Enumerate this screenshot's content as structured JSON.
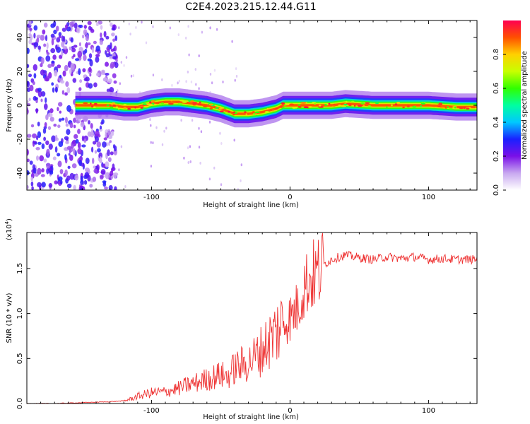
{
  "figure": {
    "title": "C2E4.2023.215.12.44.G11"
  },
  "chart_data": [
    {
      "type": "heatmap",
      "title": "C2E4.2023.215.12.44.G11",
      "xlabel": "Height of straight line (km)",
      "ylabel": "Frequency (Hz)",
      "xlim": [
        -190,
        135
      ],
      "ylim": [
        -50,
        50
      ],
      "x_ticks": [
        -100,
        0,
        100
      ],
      "y_ticks": [
        -40,
        -20,
        0,
        20,
        40
      ],
      "grid": false,
      "ridge": {
        "x": [
          -155,
          -140,
          -130,
          -120,
          -110,
          -100,
          -90,
          -80,
          -70,
          -60,
          -50,
          -40,
          -30,
          -20,
          -10,
          -5,
          0,
          10,
          20,
          30,
          40,
          60,
          80,
          100,
          120,
          135
        ],
        "frequency": [
          0,
          0,
          0,
          -1,
          -1,
          1,
          2,
          2,
          1,
          0,
          -2,
          -5,
          -5,
          -4,
          -2,
          0,
          0,
          0,
          0,
          0,
          1,
          0,
          0,
          0,
          -1,
          -1
        ]
      },
      "noise_region_x": [
        -190,
        -125
      ],
      "colorbar": {
        "label": "Normalized spectral amplitude",
        "range": [
          0,
          1
        ],
        "ticks": [
          "0.0",
          "0.2",
          "0.4",
          "0.6",
          "0.8"
        ],
        "tick_values": [
          0.0,
          0.2,
          0.4,
          0.6,
          0.8
        ],
        "colormap": [
          "#ffffff",
          "#c8a8f0",
          "#7a10e8",
          "#1a20ff",
          "#00c8ff",
          "#00ffa0",
          "#30ff00",
          "#c8ff00",
          "#ffd000",
          "#ff5000",
          "#ff0050"
        ]
      }
    },
    {
      "type": "line",
      "xlabel": "Height of straight line (km)",
      "ylabel": "SNR (10 * v/v)",
      "y_scale_label": "(x10",
      "y_scale_exponent": "4",
      "y_scale_suffix": ")",
      "xlim": [
        -190,
        135
      ],
      "ylim": [
        0,
        1.9
      ],
      "x_ticks": [
        -100,
        0,
        100
      ],
      "y_ticks": [
        0.0,
        0.5,
        1.0,
        1.5
      ],
      "y_tick_labels": [
        "0.0",
        "0.5",
        "1.0",
        "1.5"
      ],
      "grid": false,
      "color": "#ee3333",
      "series": [
        {
          "x": [
            -190,
            -170,
            -150,
            -130,
            -120,
            -115,
            -110,
            -100,
            -90,
            -80,
            -75,
            -70,
            -60,
            -50,
            -45,
            -40,
            -30,
            -20,
            -15,
            -10,
            -5,
            0,
            5,
            8,
            10,
            15,
            20,
            25,
            30,
            40,
            50,
            60,
            70,
            80,
            90,
            100,
            110,
            120,
            135
          ],
          "values": [
            0.0,
            0.0,
            0.01,
            0.02,
            0.03,
            0.05,
            0.08,
            0.12,
            0.13,
            0.17,
            0.2,
            0.22,
            0.27,
            0.32,
            0.3,
            0.4,
            0.45,
            0.6,
            0.7,
            0.8,
            0.9,
            0.95,
            1.05,
            1.2,
            1.3,
            1.4,
            1.45,
            1.55,
            1.6,
            1.65,
            1.62,
            1.6,
            1.63,
            1.61,
            1.63,
            1.6,
            1.61,
            1.6,
            1.6
          ]
        }
      ]
    }
  ]
}
